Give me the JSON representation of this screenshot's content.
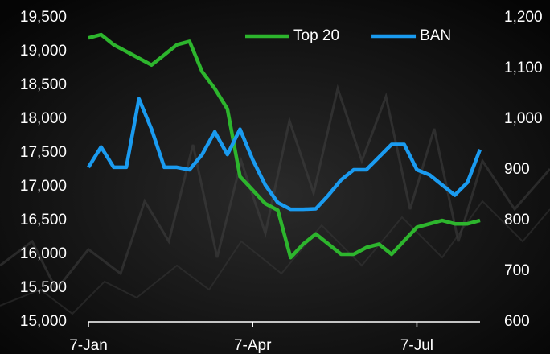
{
  "chart_data": {
    "type": "line",
    "categories": [
      "7-Jan",
      null,
      null,
      null,
      null,
      null,
      null,
      null,
      null,
      null,
      null,
      null,
      null,
      "7-Apr",
      null,
      null,
      null,
      null,
      null,
      null,
      null,
      null,
      null,
      null,
      null,
      null,
      "7-Jul",
      null,
      null,
      null,
      null,
      null
    ],
    "series": [
      {
        "name": "Top 20",
        "color": "#2db52d",
        "values": [
          19200,
          19250,
          19100,
          19000,
          18900,
          18800,
          18950,
          19100,
          19150,
          18700,
          18450,
          18150,
          17150,
          16950,
          16750,
          16650,
          15950,
          16150,
          16300,
          16150,
          16000,
          16000,
          16100,
          16150,
          16000,
          16200,
          16400,
          16450,
          16500,
          16450,
          16450,
          16500
        ]
      },
      {
        "name": "BAN",
        "color": "#1a9bf0",
        "axis": "y2",
        "values": [
          905,
          945,
          905,
          905,
          1040,
          980,
          905,
          905,
          900,
          930,
          975,
          930,
          980,
          920,
          870,
          835,
          822,
          822,
          823,
          850,
          880,
          900,
          900,
          925,
          950,
          950,
          900,
          890,
          870,
          850,
          875,
          940
        ]
      }
    ],
    "ylim": [
      15000,
      19500
    ],
    "yticks": [
      {
        "value": 15000,
        "label": "15,000"
      },
      {
        "value": 15500,
        "label": "15,500"
      },
      {
        "value": 16000,
        "label": "16,000"
      },
      {
        "value": 16500,
        "label": "16,500"
      },
      {
        "value": 17000,
        "label": "17,000"
      },
      {
        "value": 17500,
        "label": "17,500"
      },
      {
        "value": 18000,
        "label": "18,000"
      },
      {
        "value": 18500,
        "label": "18,500"
      },
      {
        "value": 19000,
        "label": "19,000"
      },
      {
        "value": 19500,
        "label": "19,500"
      }
    ],
    "y2lim": [
      600,
      1200
    ],
    "y2ticks": [
      600,
      700,
      800,
      900,
      {
        "value": 1000,
        "label": "1,000"
      },
      {
        "value": 1100,
        "label": "1,100"
      },
      {
        "value": 1200,
        "label": "1,200"
      }
    ],
    "legend": "top-right"
  }
}
